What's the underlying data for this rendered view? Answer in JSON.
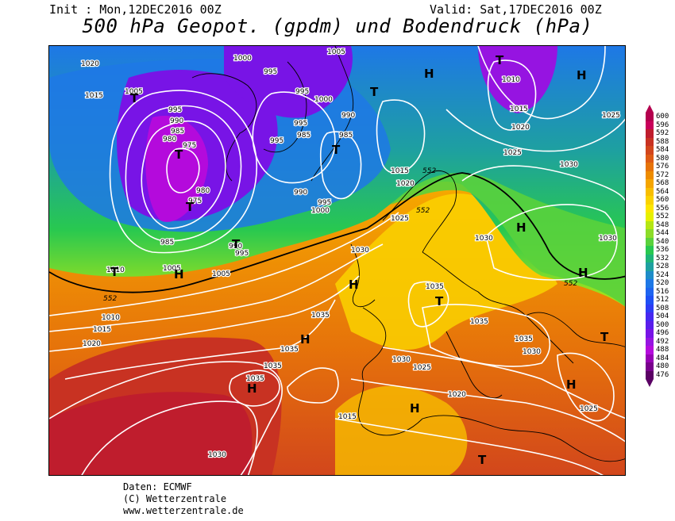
{
  "header": {
    "init": "Init : Mon,12DEC2016 00Z",
    "valid": "Valid: Sat,17DEC2016 00Z",
    "title": "500 hPa Geopot. (gpdm) und Bodendruck (hPa)"
  },
  "legend": {
    "values": [
      "600",
      "596",
      "592",
      "588",
      "584",
      "580",
      "576",
      "572",
      "568",
      "564",
      "560",
      "556",
      "552",
      "548",
      "544",
      "540",
      "536",
      "532",
      "528",
      "524",
      "520",
      "516",
      "512",
      "508",
      "504",
      "500",
      "496",
      "492",
      "488",
      "484",
      "480",
      "476"
    ],
    "colors": [
      "#b4004e",
      "#c8005a",
      "#bf1d2d",
      "#c83222",
      "#d2461c",
      "#de5a14",
      "#e6730a",
      "#ee8c00",
      "#f5a500",
      "#f8be00",
      "#fad200",
      "#fce600",
      "#e6f000",
      "#b4e614",
      "#8cdc28",
      "#5ad23c",
      "#28c850",
      "#1eb478",
      "#1ea0a0",
      "#1e8cc8",
      "#1e78e6",
      "#1e64f0",
      "#1e50f5",
      "#2d3cf5",
      "#4628f0",
      "#5a1eeb",
      "#7814e6",
      "#9614e1",
      "#b40adc",
      "#9600b4",
      "#78008c",
      "#5a0064"
    ]
  },
  "map": {
    "pressure_labels": [
      "1020",
      "1015",
      "1010",
      "1005",
      "1000",
      "995",
      "990",
      "985",
      "980",
      "975",
      "1025",
      "1030",
      "1035",
      "1010",
      "1015",
      "1020",
      "1025",
      "1030",
      "1035"
    ],
    "geopot_label": "552",
    "H": "H",
    "T": "T"
  },
  "credits": {
    "line1": "Daten: ECMWF",
    "line2": "(C) Wetterzentrale",
    "line3": "www.wetterzentrale.de"
  }
}
